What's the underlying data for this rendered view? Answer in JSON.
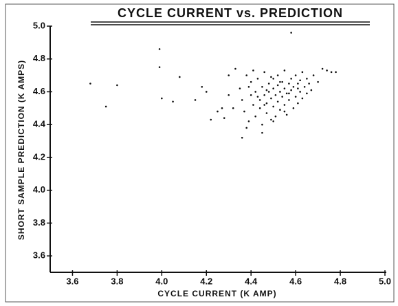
{
  "chart_data": {
    "type": "scatter",
    "title": "CYCLE CURRENT vs. PREDICTION",
    "x_label": "CYCLE CURRENT (K AMP)",
    "y_label": "SHORT SAMPLE PREDICTION (K AMPS)",
    "color": "#111111",
    "xlim": [
      3.5,
      5.0
    ],
    "ylim": [
      3.5,
      5.0
    ],
    "xticks": [
      3.6,
      3.8,
      {
        "value": 4,
        "label": "4.0"
      },
      4.2,
      4.4,
      4.6,
      4.8,
      {
        "value": 5,
        "label": "5.0"
      }
    ],
    "yticks": [
      3.6,
      3.8,
      {
        "value": 4,
        "label": "4.0"
      },
      4.2,
      4.4,
      4.6,
      4.8,
      {
        "value": 5,
        "label": "5.0"
      }
    ],
    "x": [
      3.68,
      3.75,
      3.8,
      3.99,
      3.99,
      4.0,
      4.05,
      4.08,
      4.15,
      4.18,
      4.2,
      4.22,
      4.25,
      4.27,
      4.3,
      4.35,
      4.36,
      4.37,
      4.38,
      4.39,
      4.4,
      4.4,
      4.41,
      4.42,
      4.42,
      4.43,
      4.44,
      4.44,
      4.45,
      4.45,
      4.46,
      4.46,
      4.47,
      4.47,
      4.48,
      4.48,
      4.49,
      4.49,
      4.5,
      4.5,
      4.5,
      4.51,
      4.51,
      4.52,
      4.52,
      4.52,
      4.53,
      4.53,
      4.54,
      4.54,
      4.55,
      4.55,
      4.55,
      4.56,
      4.56,
      4.57,
      4.57,
      4.58,
      4.58,
      4.59,
      4.59,
      4.6,
      4.6,
      4.61,
      4.61,
      4.62,
      4.62,
      4.63,
      4.63,
      4.64,
      4.65,
      4.65,
      4.66,
      4.67,
      4.68,
      4.7,
      4.72,
      4.74,
      4.76,
      4.78,
      4.36,
      4.38,
      4.45,
      4.5,
      4.58,
      4.33,
      4.3,
      4.32,
      4.28,
      4.41,
      4.47,
      4.53,
      4.43,
      4.57,
      4.49,
      4.39,
      4.61,
      4.55,
      4.46
    ],
    "y": [
      4.65,
      4.51,
      4.64,
      4.86,
      4.75,
      4.56,
      4.54,
      4.69,
      4.55,
      4.63,
      4.6,
      4.43,
      4.48,
      4.5,
      4.58,
      4.62,
      4.55,
      4.48,
      4.7,
      4.42,
      4.58,
      4.66,
      4.52,
      4.6,
      4.45,
      4.68,
      4.55,
      4.5,
      4.63,
      4.4,
      4.58,
      4.72,
      4.53,
      4.47,
      4.65,
      4.6,
      4.56,
      4.43,
      4.62,
      4.68,
      4.51,
      4.58,
      4.45,
      4.64,
      4.54,
      4.7,
      4.6,
      4.49,
      4.66,
      4.57,
      4.62,
      4.52,
      4.73,
      4.59,
      4.46,
      4.65,
      4.55,
      4.68,
      4.61,
      4.5,
      4.63,
      4.7,
      4.57,
      4.65,
      4.53,
      4.6,
      4.67,
      4.72,
      4.56,
      4.63,
      4.68,
      4.59,
      4.65,
      4.61,
      4.7,
      4.66,
      4.74,
      4.73,
      4.72,
      4.72,
      4.32,
      4.38,
      4.35,
      4.42,
      4.96,
      4.74,
      4.7,
      4.5,
      4.44,
      4.73,
      4.61,
      4.66,
      4.57,
      4.59,
      4.69,
      4.63,
      4.62,
      4.48,
      4.52
    ]
  }
}
